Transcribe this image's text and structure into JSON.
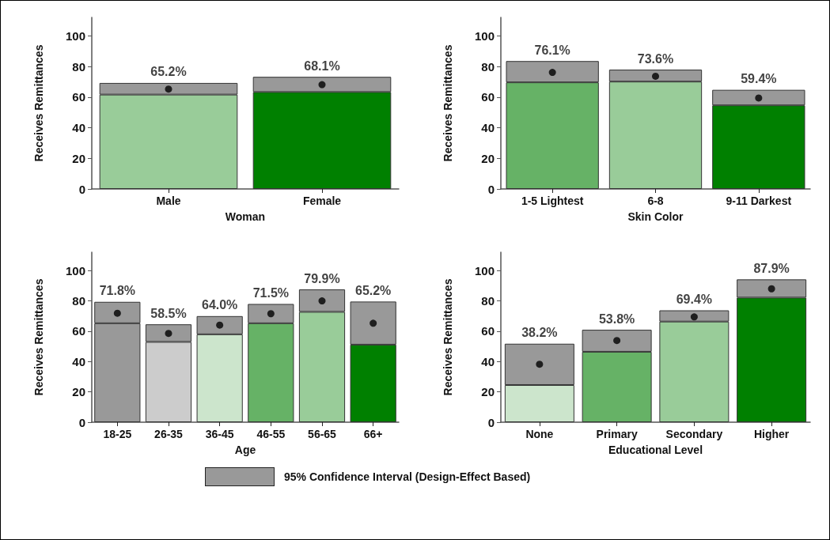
{
  "chart_data": [
    {
      "type": "bar",
      "stacked": true,
      "xlabel": "Woman",
      "ylabel": "Receives Remittances",
      "categories": [
        "Male",
        "Female"
      ],
      "marker": "circle",
      "ylim": [
        0,
        112
      ],
      "yticks": [
        0,
        20,
        40,
        60,
        80,
        100
      ],
      "series": [
        {
          "colors": [
            "#99cc99",
            "#008000"
          ],
          "values": [
            61.6,
            63.3
          ]
        },
        {
          "color": "#999999",
          "values": [
            7.6,
            9.9
          ]
        },
        {
          "type": "scatter",
          "x": [
            "Male",
            "Female"
          ],
          "color": "#000000",
          "values": [
            65.2,
            68.1
          ],
          "value_labels": [
            "65.2%",
            "68.1%"
          ]
        }
      ]
    },
    {
      "type": "bar",
      "stacked": true,
      "xlabel": "Skin Color",
      "ylabel": "Receives Remittances",
      "categories": [
        "1-5 Lightest",
        "6-8",
        "9-11 Darkest"
      ],
      "marker": "circle",
      "ylim": [
        0,
        112
      ],
      "yticks": [
        0,
        20,
        40,
        60,
        80,
        100
      ],
      "series": [
        {
          "colors": [
            "#66b266",
            "#99cc99",
            "#008000"
          ],
          "values": [
            69.6,
            70.1,
            54.6
          ]
        },
        {
          "color": "#999999",
          "values": [
            13.9,
            7.8,
            10.1
          ]
        },
        {
          "type": "scatter",
          "x": [
            "1-5 Lightest",
            "6-8",
            "9-11 Darkest"
          ],
          "color": "#000000",
          "values": [
            76.1,
            73.6,
            59.4
          ],
          "value_labels": [
            "76.1%",
            "73.6%",
            "59.4%"
          ]
        }
      ]
    },
    {
      "type": "bar",
      "stacked": true,
      "xlabel": "Age",
      "ylabel": "Receives Remittances",
      "categories": [
        "18-25",
        "26-35",
        "36-45",
        "46-55",
        "56-65",
        "66+"
      ],
      "marker": "circle",
      "ylim": [
        0,
        112
      ],
      "yticks": [
        0,
        20,
        40,
        60,
        80,
        100
      ],
      "series": [
        {
          "colors": [
            "#999999",
            "#cccccc",
            "#cce5cc",
            "#66b266",
            "#99cc99",
            "#008000"
          ],
          "values": [
            65.2,
            52.9,
            57.9,
            65.2,
            72.7,
            51.1
          ]
        },
        {
          "color": "#999999",
          "values": [
            14.1,
            11.6,
            12.0,
            12.7,
            14.8,
            28.4
          ]
        },
        {
          "type": "scatter",
          "x": [
            "18-25",
            "26-35",
            "36-45",
            "46-55",
            "56-65",
            "66+"
          ],
          "color": "#000000",
          "values": [
            71.8,
            58.5,
            64.0,
            71.5,
            79.9,
            65.2
          ],
          "value_labels": [
            "71.8%",
            "58.5%",
            "64.0%",
            "71.5%",
            "79.9%",
            "65.2%"
          ]
        }
      ]
    },
    {
      "type": "bar",
      "stacked": true,
      "xlabel": "Educational Level",
      "ylabel": "Receives Remittances",
      "categories": [
        "None",
        "Primary",
        "Secondary",
        "Higher"
      ],
      "marker": "circle",
      "ylim": [
        0,
        112
      ],
      "yticks": [
        0,
        20,
        40,
        60,
        80,
        100
      ],
      "series": [
        {
          "colors": [
            "#cce5cc",
            "#66b266",
            "#99cc99",
            "#008000"
          ],
          "values": [
            24.5,
            46.4,
            66.3,
            82.1
          ]
        },
        {
          "color": "#999999",
          "values": [
            27.2,
            14.5,
            7.4,
            12.0
          ]
        },
        {
          "type": "scatter",
          "x": [
            "None",
            "Primary",
            "Secondary",
            "Higher"
          ],
          "color": "#000000",
          "values": [
            38.2,
            53.8,
            69.4,
            87.9
          ],
          "value_labels": [
            "38.2%",
            "53.8%",
            "69.4%",
            "87.9%"
          ]
        }
      ]
    },
    {
      "type": "other",
      "annotations": [
        "95% Confidence Interval (Design-Effect Based)"
      ]
    }
  ]
}
